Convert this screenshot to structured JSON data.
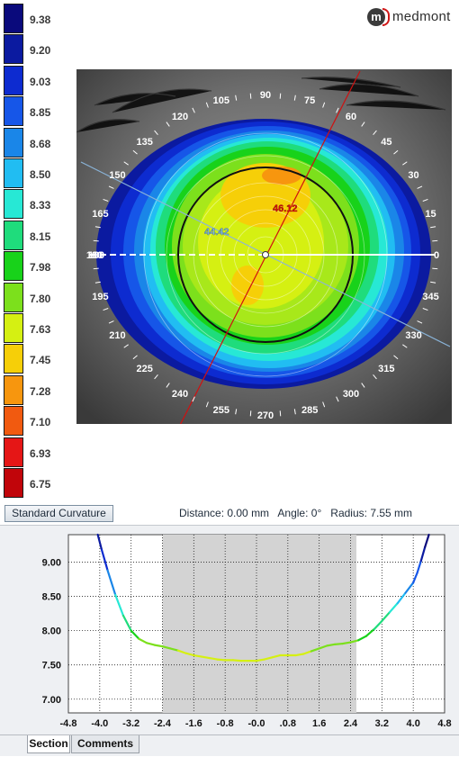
{
  "brand": {
    "logo_letter": "m",
    "name": "medmont"
  },
  "color_scale": [
    {
      "value": "9.38",
      "color": "#0a0a7c"
    },
    {
      "value": "9.20",
      "color": "#0b1aa0"
    },
    {
      "value": "9.03",
      "color": "#0d2bd0"
    },
    {
      "value": "8.85",
      "color": "#1656e8"
    },
    {
      "value": "8.68",
      "color": "#1a86e8"
    },
    {
      "value": "8.50",
      "color": "#21bdf2"
    },
    {
      "value": "8.33",
      "color": "#27e8d5"
    },
    {
      "value": "8.15",
      "color": "#1fdc7c"
    },
    {
      "value": "7.98",
      "color": "#18d21a"
    },
    {
      "value": "7.80",
      "color": "#7ce01c"
    },
    {
      "value": "7.63",
      "color": "#d5f012"
    },
    {
      "value": "7.45",
      "color": "#f6cf08"
    },
    {
      "value": "7.28",
      "color": "#f7960e"
    },
    {
      "value": "7.10",
      "color": "#f15a10"
    },
    {
      "value": "6.93",
      "color": "#e51616"
    },
    {
      "value": "6.75",
      "color": "#c1050a"
    }
  ],
  "map": {
    "angle_labels": [
      "0",
      "15",
      "30",
      "45",
      "60",
      "75",
      "90",
      "105",
      "120",
      "135",
      "150",
      "165",
      "180",
      "195",
      "210",
      "225",
      "240",
      "255",
      "270",
      "285",
      "300",
      "315",
      "330",
      "345"
    ],
    "angle_label_0_left": "180",
    "angle_label_0_right": "0",
    "readout_steep": "46.12",
    "readout_flat": "44.42"
  },
  "controls": {
    "standard_curvature_label": "Standard Curvature",
    "distance_label": "Distance:",
    "distance_value": "0.00 mm",
    "angle_label": "Angle:",
    "angle_value": "0°",
    "radius_label": "Radius:",
    "radius_value": "7.55 mm"
  },
  "tabs": {
    "section": "Section",
    "comments": "Comments"
  },
  "chart_data": {
    "type": "line",
    "x_ticks": [
      "-4.8",
      "-4.0",
      "-3.2",
      "-2.4",
      "-1.6",
      "-0.8",
      "-0.0",
      ".0.8",
      "1.6",
      "2.4",
      "3.2",
      "4.0",
      "4.8"
    ],
    "y_ticks": [
      "9.00",
      "8.50",
      "8.00",
      "7.50",
      "7.00"
    ],
    "xlim": [
      -4.8,
      4.8
    ],
    "ylim": [
      6.8,
      9.4
    ],
    "shaded_region": [
      -2.4,
      2.55
    ],
    "grid": true,
    "series": [
      {
        "x": [
          -4.05,
          -3.95,
          -3.8,
          -3.6,
          -3.4,
          -3.2,
          -3.0,
          -2.8,
          -2.6,
          -2.4,
          -2.2,
          -2.0,
          -1.8,
          -1.6,
          -1.4,
          -1.2,
          -1.0,
          -0.8,
          -0.6,
          -0.4,
          -0.2,
          0.0,
          0.2,
          0.4,
          0.6,
          0.8,
          1.0,
          1.2,
          1.4,
          1.6,
          1.8,
          2.0,
          2.2,
          2.4,
          2.6,
          2.8,
          3.0,
          3.2,
          3.4,
          3.6,
          3.8,
          4.0,
          4.1,
          4.2,
          4.3,
          4.4
        ],
        "y": [
          9.4,
          9.18,
          8.88,
          8.52,
          8.22,
          8.0,
          7.88,
          7.82,
          7.79,
          7.77,
          7.74,
          7.71,
          7.67,
          7.64,
          7.62,
          7.6,
          7.58,
          7.57,
          7.57,
          7.56,
          7.56,
          7.56,
          7.58,
          7.61,
          7.64,
          7.64,
          7.64,
          7.66,
          7.7,
          7.74,
          7.78,
          7.8,
          7.81,
          7.83,
          7.86,
          7.92,
          8.02,
          8.14,
          8.27,
          8.4,
          8.55,
          8.7,
          8.84,
          9.02,
          9.22,
          9.4
        ]
      }
    ]
  }
}
